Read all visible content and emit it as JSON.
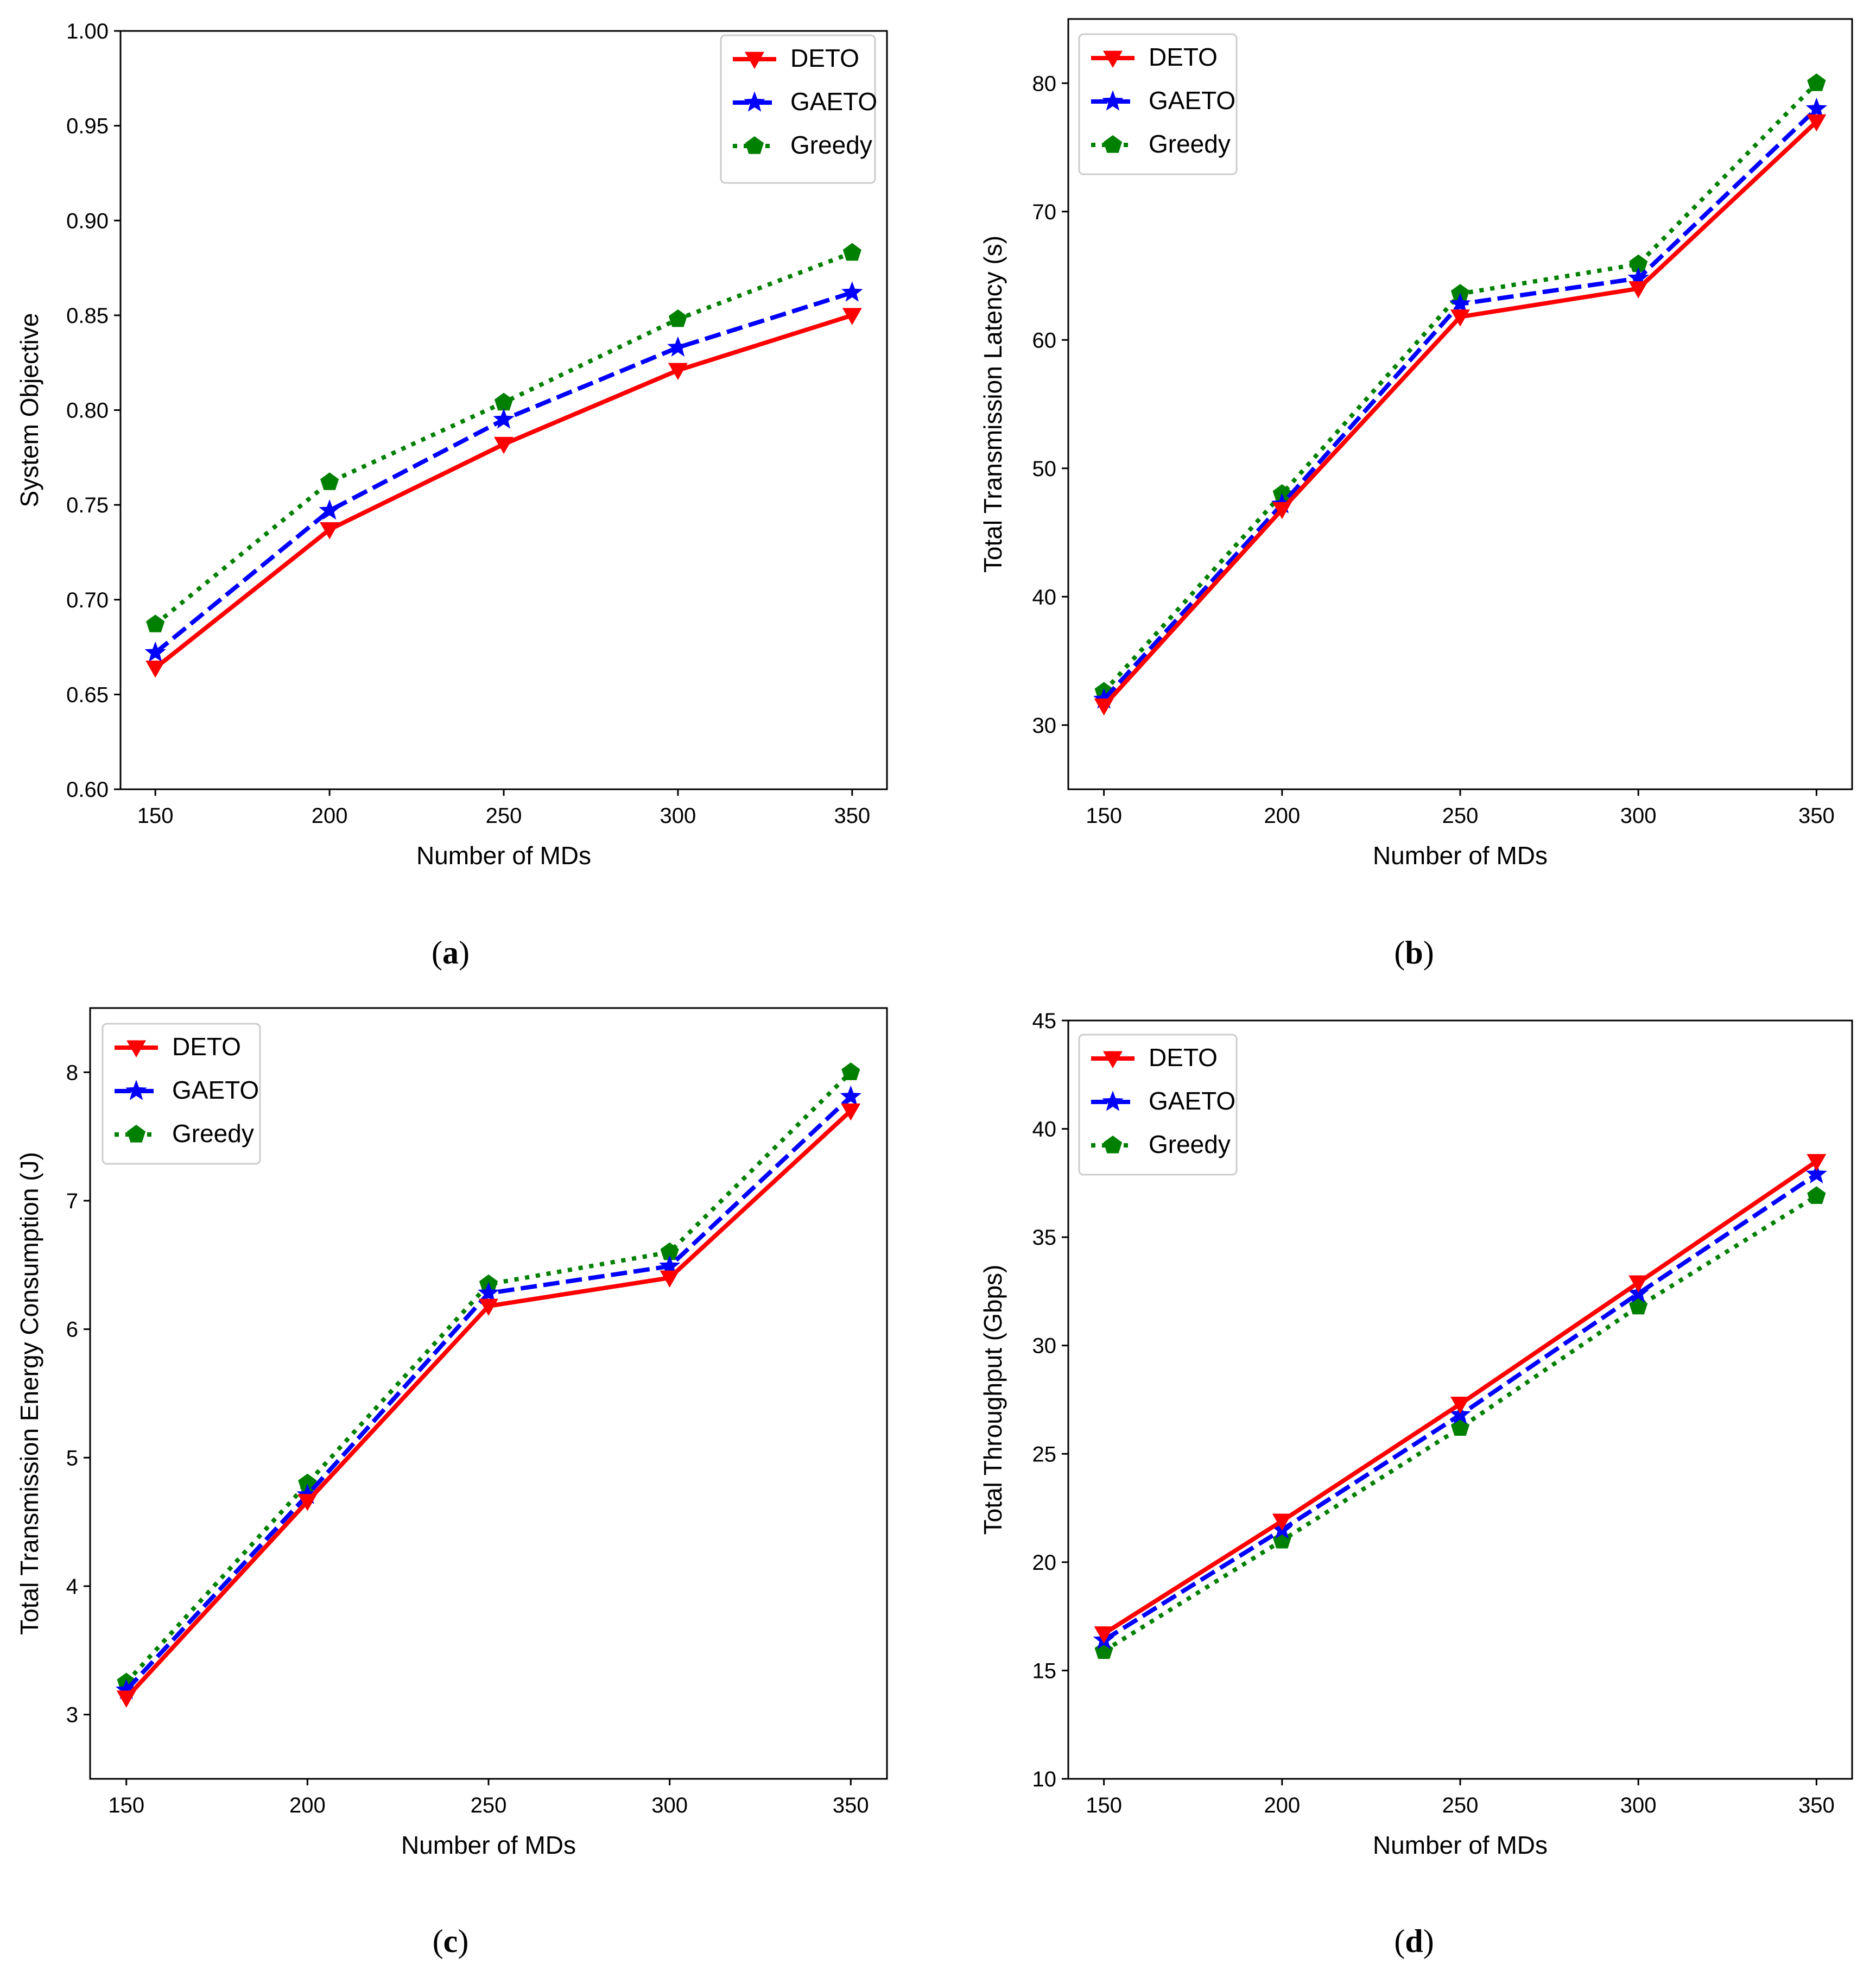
{
  "colors": {
    "DETO": "#ff0000",
    "GAETO": "#0000ff",
    "Greedy": "#008000",
    "axis": "#000000",
    "background": "#ffffff"
  },
  "series_styles": [
    {
      "name": "DETO",
      "line": "solid",
      "marker": "triangle-down-icon"
    },
    {
      "name": "GAETO",
      "line": "dashed",
      "marker": "star-icon"
    },
    {
      "name": "Greedy",
      "line": "dotted",
      "marker": "pentagon-icon"
    }
  ],
  "chart_data": [
    {
      "id": "a",
      "caption_letter": "a",
      "type": "line",
      "xlabel": "Number of MDs",
      "ylabel": "System Objective",
      "x": [
        150,
        200,
        250,
        300,
        350
      ],
      "xticks": [
        "150",
        "200",
        "250",
        "300",
        "350"
      ],
      "ylim": [
        0.6,
        1.0
      ],
      "yticks": [
        "0.60",
        "0.65",
        "0.70",
        "0.75",
        "0.80",
        "0.85",
        "0.90",
        "0.95",
        "1.00"
      ],
      "legend_position": "top-right",
      "series": [
        {
          "name": "DETO",
          "values": [
            0.664,
            0.737,
            0.782,
            0.821,
            0.85
          ]
        },
        {
          "name": "GAETO",
          "values": [
            0.672,
            0.747,
            0.795,
            0.833,
            0.862
          ]
        },
        {
          "name": "Greedy",
          "values": [
            0.687,
            0.762,
            0.804,
            0.848,
            0.883
          ]
        }
      ]
    },
    {
      "id": "b",
      "caption_letter": "b",
      "type": "line",
      "xlabel": "Number of MDs",
      "ylabel": "Total Transmission Latency (s)",
      "x": [
        150,
        200,
        250,
        300,
        350
      ],
      "xticks": [
        "150",
        "200",
        "250",
        "300",
        "350"
      ],
      "ylim": [
        25,
        85
      ],
      "yticks": [
        "30",
        "40",
        "50",
        "60",
        "70",
        "80"
      ],
      "legend_position": "top-left",
      "series": [
        {
          "name": "DETO",
          "values": [
            31.5,
            46.8,
            61.8,
            64.0,
            77.0
          ]
        },
        {
          "name": "GAETO",
          "values": [
            32.0,
            47.2,
            62.8,
            64.8,
            78.0
          ]
        },
        {
          "name": "Greedy",
          "values": [
            32.6,
            48.0,
            63.6,
            65.9,
            80.0
          ]
        }
      ]
    },
    {
      "id": "c",
      "caption_letter": "c",
      "type": "line",
      "xlabel": "Number of MDs",
      "ylabel": "Total Transmission Energy Consumption (J)",
      "x": [
        150,
        200,
        250,
        300,
        350
      ],
      "xticks": [
        "150",
        "200",
        "250",
        "300",
        "350"
      ],
      "ylim": [
        2.5,
        8.5
      ],
      "yticks": [
        "3",
        "4",
        "5",
        "6",
        "7",
        "8"
      ],
      "legend_position": "top-left",
      "series": [
        {
          "name": "DETO",
          "values": [
            3.13,
            4.66,
            6.18,
            6.4,
            7.7
          ]
        },
        {
          "name": "GAETO",
          "values": [
            3.19,
            4.71,
            6.28,
            6.49,
            7.81
          ]
        },
        {
          "name": "Greedy",
          "values": [
            3.25,
            4.8,
            6.35,
            6.6,
            8.0
          ]
        }
      ]
    },
    {
      "id": "d",
      "caption_letter": "d",
      "type": "line",
      "xlabel": "Number of MDs",
      "ylabel": "Total Throughput (Gbps)",
      "x": [
        150,
        200,
        250,
        300,
        350
      ],
      "xticks": [
        "150",
        "200",
        "250",
        "300",
        "350"
      ],
      "ylim": [
        10,
        45
      ],
      "yticks": [
        "10",
        "15",
        "20",
        "25",
        "30",
        "35",
        "40",
        "45"
      ],
      "legend_position": "top-left",
      "series": [
        {
          "name": "DETO",
          "values": [
            16.7,
            21.9,
            27.3,
            32.9,
            38.5
          ]
        },
        {
          "name": "GAETO",
          "values": [
            16.4,
            21.5,
            26.8,
            32.4,
            37.9
          ]
        },
        {
          "name": "Greedy",
          "values": [
            15.9,
            21.0,
            26.2,
            31.8,
            36.9
          ]
        }
      ]
    }
  ]
}
